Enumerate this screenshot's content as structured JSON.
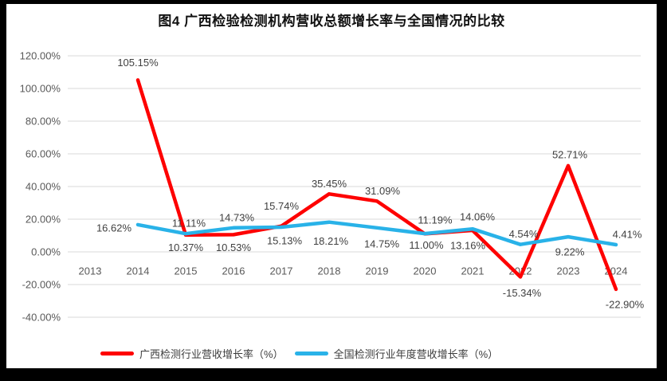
{
  "chart_data": {
    "type": "line",
    "title": "图4 广西检验检测机构营收总额增长率与全国情况的比较",
    "categories": [
      "2013",
      "2014",
      "2015",
      "2016",
      "2017",
      "2018",
      "2019",
      "2020",
      "2021",
      "2022",
      "2023",
      "2024"
    ],
    "y_ticks": [
      "120.00%",
      "100.00%",
      "80.00%",
      "60.00%",
      "40.00%",
      "20.00%",
      "0.00%",
      "-20.00%",
      "-40.00%"
    ],
    "ylim": [
      -40,
      120
    ],
    "y_tick_step": 20,
    "grid": "horizontal",
    "legend_position": "bottom",
    "series": [
      {
        "id": "guangxi",
        "name": "广西检测行业营收增长率（%）",
        "color": "#FE0000",
        "points": [
          {
            "year": 2014,
            "value": 105.15,
            "label": "105.15%",
            "offset": [
              0,
              -22
            ]
          },
          {
            "year": 2015,
            "value": 10.37,
            "label": "10.37%",
            "offset": [
              0,
              16
            ]
          },
          {
            "year": 2016,
            "value": 10.53,
            "label": "10.53%",
            "offset": [
              0,
              16
            ]
          },
          {
            "year": 2017,
            "value": 15.74,
            "label": "15.74%",
            "offset": [
              0,
              -25
            ]
          },
          {
            "year": 2018,
            "value": 35.45,
            "label": "35.45%",
            "offset": [
              0,
              -13
            ]
          },
          {
            "year": 2019,
            "value": 31.09,
            "label": "31.09%",
            "offset": [
              7,
              -13
            ]
          },
          {
            "year": 2020,
            "value": 11.0,
            "label": "11.00%",
            "offset": [
              2,
              14
            ]
          },
          {
            "year": 2021,
            "value": 13.16,
            "label": "13.16%",
            "offset": [
              -6,
              19
            ]
          },
          {
            "year": 2022,
            "value": -15.34,
            "label": "-15.34%",
            "offset": [
              2,
              20
            ]
          },
          {
            "year": 2023,
            "value": 52.71,
            "label": "52.71%",
            "offset": [
              2,
              -14
            ]
          },
          {
            "year": 2024,
            "value": -22.9,
            "label": "-22.90%",
            "offset": [
              11,
              19
            ]
          }
        ]
      },
      {
        "id": "national",
        "name": "全国检测行业年度营收增长率（%）",
        "color": "#29B2E8",
        "points": [
          {
            "year": 2014,
            "value": 16.62,
            "label": "16.62%",
            "offset": [
              -30,
              4
            ]
          },
          {
            "year": 2015,
            "value": 11.11,
            "label": "11.11%",
            "offset": [
              4,
              -13
            ]
          },
          {
            "year": 2016,
            "value": 14.73,
            "label": "14.73%",
            "offset": [
              4,
              -13
            ]
          },
          {
            "year": 2017,
            "value": 15.13,
            "label": "15.13%",
            "offset": [
              4,
              17
            ]
          },
          {
            "year": 2018,
            "value": 18.21,
            "label": "18.21%",
            "offset": [
              2,
              24
            ]
          },
          {
            "year": 2019,
            "value": 14.75,
            "label": "14.75%",
            "offset": [
              6,
              20
            ]
          },
          {
            "year": 2020,
            "value": 11.19,
            "label": "11.19%",
            "offset": [
              13,
              -17
            ]
          },
          {
            "year": 2021,
            "value": 14.06,
            "label": "14.06%",
            "offset": [
              6,
              -15
            ]
          },
          {
            "year": 2022,
            "value": 4.54,
            "label": "4.54%",
            "offset": [
              4,
              -13
            ]
          },
          {
            "year": 2023,
            "value": 9.22,
            "label": "9.22%",
            "offset": [
              2,
              19
            ]
          },
          {
            "year": 2024,
            "value": 4.41,
            "label": "4.41%",
            "offset": [
              14,
              -13
            ]
          }
        ]
      }
    ]
  }
}
